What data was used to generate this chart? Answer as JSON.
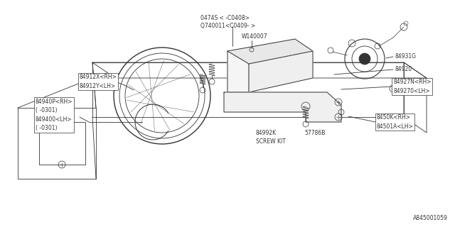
{
  "bg_color": "#ffffff",
  "line_color": "#333333",
  "diagram_id": "A845001059",
  "labels": {
    "part1a": "0474S < -C0408>",
    "part1b": "Q740011<C0409- >",
    "part2": "W140007",
    "part3": "84931G",
    "part4": "84920",
    "part5a": "84927N<RH>",
    "part5b": "849270<LH>",
    "part6a": "84912X<RH>",
    "part6b": "84912Y<LH>",
    "part7a": "84940P<RH>",
    "part7b": "( -0301)",
    "part7c": "849400<LH>",
    "part7d": "( -0301)",
    "part8": "57786B",
    "part9a": "84992K",
    "part9b": "SCREW KIT",
    "part10a": "8450K<RH>",
    "part10b": "84501A<LH>"
  }
}
